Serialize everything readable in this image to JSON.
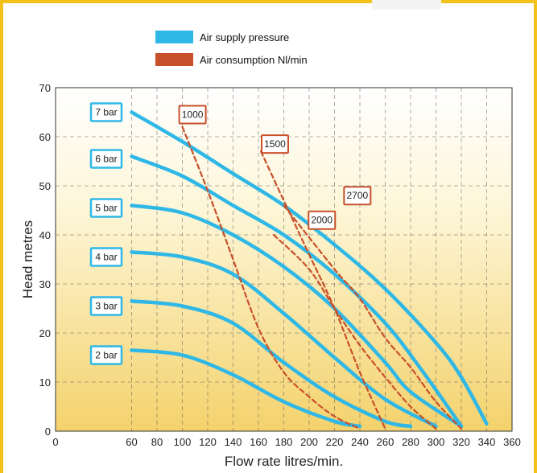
{
  "chart_data": {
    "type": "line",
    "xlabel": "Flow rate litres/min.",
    "ylabel": "Head metres",
    "xlim": [
      0,
      360
    ],
    "ylim": [
      0,
      70
    ],
    "xticks": [
      0,
      60,
      80,
      100,
      120,
      140,
      160,
      180,
      200,
      220,
      240,
      260,
      280,
      300,
      320,
      340,
      360
    ],
    "yticks": [
      0,
      10,
      20,
      30,
      40,
      50,
      60,
      70
    ],
    "grid": true,
    "legend": {
      "position": "top-center",
      "entries": [
        {
          "label": "Air supply pressure",
          "color": "#2fb8e6"
        },
        {
          "label": "Air consumption Nl/min",
          "color": "#c8502a"
        }
      ]
    },
    "series": [
      {
        "name": "7 bar",
        "group": "Air supply pressure",
        "color": "#2fb8e6",
        "points": [
          [
            60,
            65
          ],
          [
            100,
            59
          ],
          [
            140,
            52.5
          ],
          [
            180,
            46
          ],
          [
            220,
            38
          ],
          [
            260,
            29
          ],
          [
            300,
            18
          ],
          [
            320,
            11
          ],
          [
            340,
            1.5
          ]
        ]
      },
      {
        "name": "6 bar",
        "group": "Air supply pressure",
        "color": "#2fb8e6",
        "points": [
          [
            60,
            56
          ],
          [
            100,
            52
          ],
          [
            140,
            46
          ],
          [
            180,
            40
          ],
          [
            220,
            32
          ],
          [
            260,
            22
          ],
          [
            290,
            12
          ],
          [
            320,
            1
          ]
        ]
      },
      {
        "name": "5 bar",
        "group": "Air supply pressure",
        "color": "#2fb8e6",
        "points": [
          [
            60,
            46
          ],
          [
            100,
            44.5
          ],
          [
            140,
            40
          ],
          [
            180,
            33.5
          ],
          [
            220,
            25
          ],
          [
            260,
            14
          ],
          [
            280,
            8
          ],
          [
            320,
            1
          ]
        ]
      },
      {
        "name": "4 bar",
        "group": "Air supply pressure",
        "color": "#2fb8e6",
        "points": [
          [
            60,
            36.5
          ],
          [
            100,
            35.5
          ],
          [
            140,
            32
          ],
          [
            180,
            24
          ],
          [
            220,
            15
          ],
          [
            260,
            6.5
          ],
          [
            300,
            1
          ]
        ]
      },
      {
        "name": "3 bar",
        "group": "Air supply pressure",
        "color": "#2fb8e6",
        "points": [
          [
            60,
            26.5
          ],
          [
            100,
            25.5
          ],
          [
            140,
            22
          ],
          [
            180,
            14
          ],
          [
            220,
            7
          ],
          [
            260,
            2
          ],
          [
            280,
            1
          ]
        ]
      },
      {
        "name": "2 bar",
        "group": "Air supply pressure",
        "color": "#2fb8e6",
        "points": [
          [
            60,
            16.5
          ],
          [
            100,
            15.5
          ],
          [
            140,
            11.5
          ],
          [
            180,
            6
          ],
          [
            220,
            2
          ],
          [
            240,
            1
          ]
        ]
      },
      {
        "name": "1000",
        "group": "Air consumption Nl/min",
        "color": "#c8502a",
        "dashed": true,
        "points": [
          [
            100,
            62
          ],
          [
            120,
            49
          ],
          [
            140,
            35
          ],
          [
            160,
            21
          ],
          [
            180,
            12
          ],
          [
            200,
            7
          ],
          [
            220,
            3
          ],
          [
            240,
            0.5
          ]
        ]
      },
      {
        "name": "1500",
        "group": "Air consumption Nl/min",
        "color": "#c8502a",
        "dashed": true,
        "points": [
          [
            162,
            57
          ],
          [
            180,
            47
          ],
          [
            200,
            36
          ],
          [
            220,
            25
          ],
          [
            240,
            12
          ],
          [
            260,
            0.5
          ]
        ]
      },
      {
        "name": "2000",
        "group": "Air consumption Nl/min",
        "color": "#c8502a",
        "dashed": true,
        "points": [
          [
            172,
            40
          ],
          [
            200,
            33
          ],
          [
            220,
            25
          ],
          [
            240,
            17.5
          ],
          [
            260,
            11
          ],
          [
            280,
            5
          ],
          [
            300,
            0.5
          ]
        ]
      },
      {
        "name": "2700",
        "group": "Air consumption Nl/min",
        "color": "#c8502a",
        "dashed": true,
        "points": [
          [
            180,
            46
          ],
          [
            220,
            33
          ],
          [
            240,
            27
          ],
          [
            260,
            19
          ],
          [
            280,
            13
          ],
          [
            300,
            6
          ],
          [
            320,
            0.5
          ]
        ]
      }
    ],
    "annotations": [
      {
        "text": "7 bar",
        "x": 40,
        "y": 65,
        "style": "box-blue"
      },
      {
        "text": "6 bar",
        "x": 40,
        "y": 55.5,
        "style": "box-blue"
      },
      {
        "text": "5 bar",
        "x": 40,
        "y": 45.5,
        "style": "box-blue"
      },
      {
        "text": "4 bar",
        "x": 40,
        "y": 35.5,
        "style": "box-blue"
      },
      {
        "text": "3 bar",
        "x": 40,
        "y": 25.5,
        "style": "box-blue"
      },
      {
        "text": "2 bar",
        "x": 40,
        "y": 15.5,
        "style": "box-blue"
      },
      {
        "text": "1000",
        "x": 108,
        "y": 64.5,
        "style": "box-red"
      },
      {
        "text": "1500",
        "x": 173,
        "y": 58.5,
        "style": "box-red"
      },
      {
        "text": "2000",
        "x": 210,
        "y": 43,
        "style": "box-red"
      },
      {
        "text": "2700",
        "x": 238,
        "y": 48,
        "style": "box-red"
      }
    ]
  }
}
